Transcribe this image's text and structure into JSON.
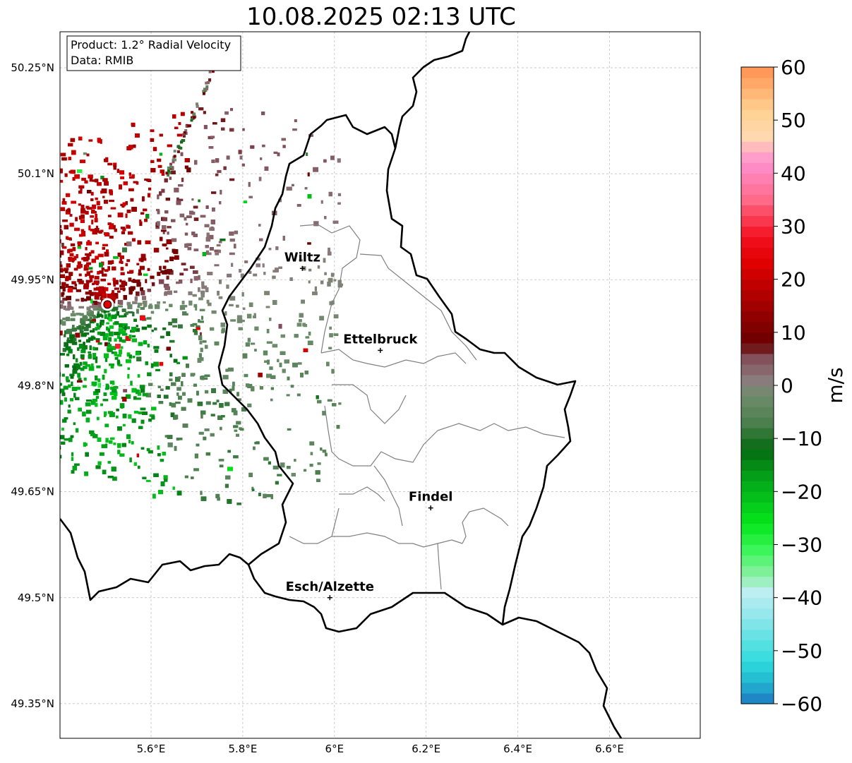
{
  "title": "10.08.2025 02:13 UTC",
  "info": {
    "product": "Product: 1.2° Radial Velocity",
    "data": "Data: RMIB"
  },
  "lat_labels": [
    "50.25°N",
    "50.1°N",
    "49.95°N",
    "49.8°N",
    "49.65°N",
    "49.5°N",
    "49.35°N"
  ],
  "lon_labels": [
    "5.6°E",
    "5.8°E",
    "6°E",
    "6.2°E",
    "6.4°E",
    "6.6°E"
  ],
  "cities": [
    {
      "name": "Wiltz",
      "lon": 5.93,
      "lat": 49.966
    },
    {
      "name": "Ettelbruck",
      "lon": 6.1,
      "lat": 49.85
    },
    {
      "name": "Findel",
      "lon": 6.21,
      "lat": 49.627
    },
    {
      "name": "Esch/Alzette",
      "lon": 5.99,
      "lat": 49.5
    }
  ],
  "radar_site": {
    "lon": 5.505,
    "lat": 49.915
  },
  "colorbar": {
    "unit": "m/s",
    "min": -60,
    "max": 60,
    "ticks": [
      "60",
      "50",
      "40",
      "30",
      "20",
      "10",
      "0",
      "−10",
      "−20",
      "−30",
      "−40",
      "−50",
      "−60"
    ],
    "stops": [
      {
        "v": -60,
        "c": "#1f78c4"
      },
      {
        "v": -56,
        "c": "#22b5d0"
      },
      {
        "v": -52,
        "c": "#2fdcdc"
      },
      {
        "v": -44,
        "c": "#8ce6ea"
      },
      {
        "v": -39,
        "c": "#bdeef2"
      },
      {
        "v": -36,
        "c": "#8ef0a8"
      },
      {
        "v": -31,
        "c": "#3cf55a"
      },
      {
        "v": -26,
        "c": "#05e61a"
      },
      {
        "v": -18,
        "c": "#04a81a"
      },
      {
        "v": -12,
        "c": "#056b12"
      },
      {
        "v": -7,
        "c": "#4c7f4e"
      },
      {
        "v": -2,
        "c": "#6e8c6c"
      },
      {
        "v": 1,
        "c": "#8a7c7c"
      },
      {
        "v": 5,
        "c": "#83515c"
      },
      {
        "v": 8,
        "c": "#6a0000"
      },
      {
        "v": 15,
        "c": "#a00000"
      },
      {
        "v": 23,
        "c": "#e00000"
      },
      {
        "v": 28,
        "c": "#f41020"
      },
      {
        "v": 35,
        "c": "#ff6a88"
      },
      {
        "v": 42,
        "c": "#ff90d0"
      },
      {
        "v": 47,
        "c": "#ffd8b0"
      },
      {
        "v": 52,
        "c": "#ffd090"
      },
      {
        "v": 60,
        "c": "#ff9050"
      }
    ]
  },
  "colors": {
    "border": "#000000",
    "canton": "#808080",
    "grid": "#b0b0b0",
    "site": "#e00000"
  }
}
